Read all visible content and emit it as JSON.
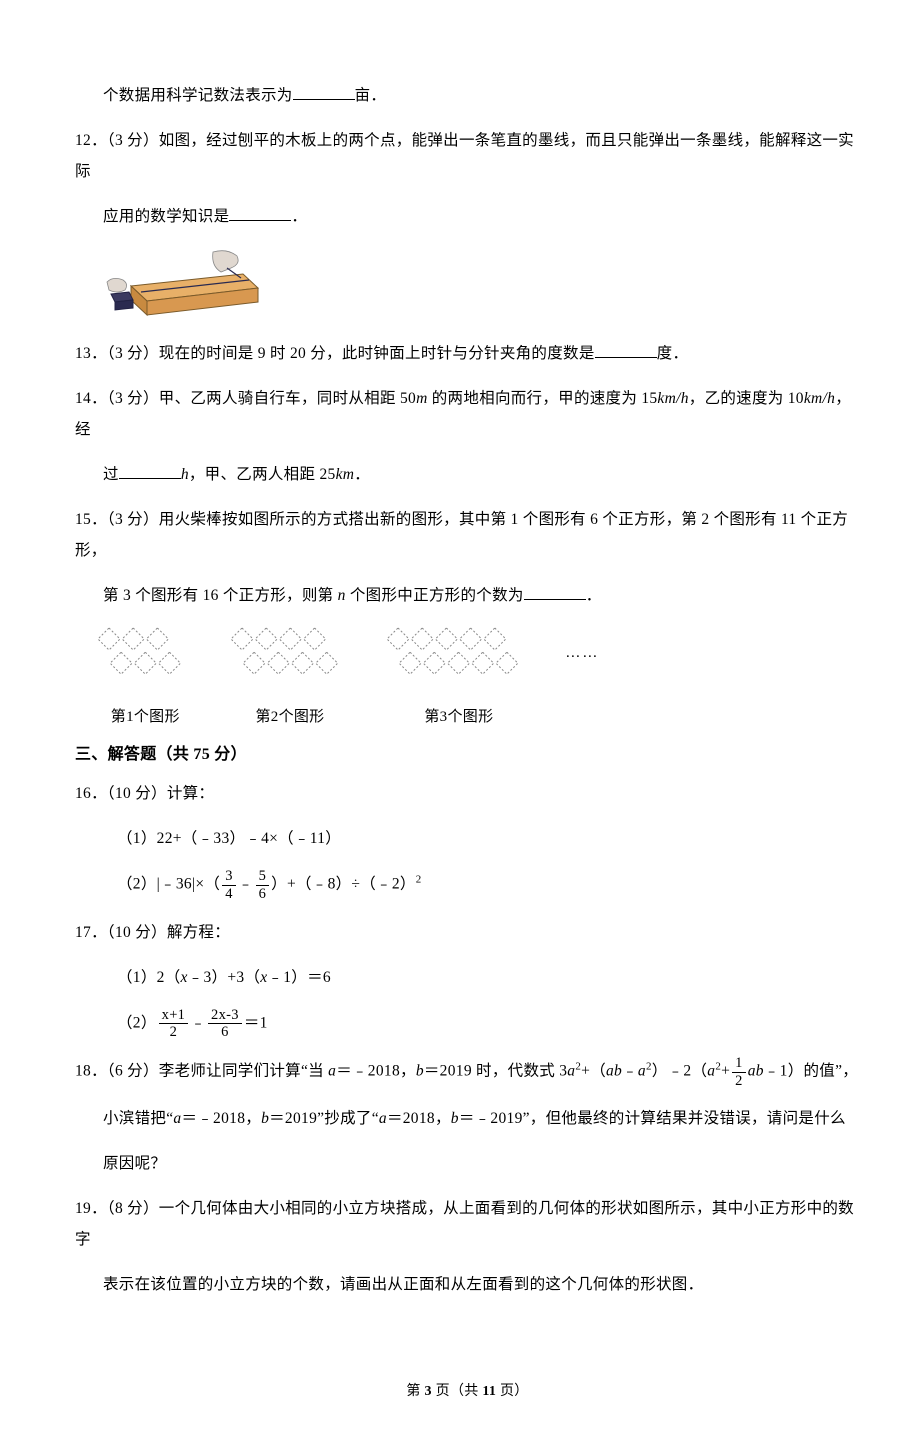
{
  "colors": {
    "text": "#000000",
    "bg": "#ffffff",
    "stroke": "#000000",
    "wood_top": "#e8b068",
    "wood_side": "#c88a40",
    "wood_front": "#d89850",
    "cloth": "#e0d8d0",
    "ink": "#3a3a60"
  },
  "blank_widths": {
    "w11": 62,
    "w12": 62,
    "w13": 62,
    "w14": 62,
    "w15": 62
  },
  "q11_cont": {
    "pre": "个数据用科学记数法表示为",
    "post": "亩．"
  },
  "q12": {
    "num": "12．（3 分）",
    "t1": "如图，经过刨平的木板上的两个点，能弹出一条笔直的墨线，而且只能弹出一条墨线，能解释这一实际",
    "t2_pre": "应用的数学知识是",
    "t2_post": "．"
  },
  "q13": {
    "num": "13．（3 分）",
    "t_pre": "现在的时间是 9 时 20 分，此时钟面上时针与分针夹角的度数是",
    "t_post": "度．"
  },
  "q14": {
    "num": "14．（3 分）",
    "t1": "甲、乙两人骑自行车，同时从相距 50",
    "m": "m",
    "t1b": " 的两地相向而行，甲的速度为 15",
    "kmh1": "km/h",
    "t1c": "，乙的速度为 10",
    "kmh2": "km/h",
    "t1d": "，经",
    "t2_pre": "过",
    "h": "h",
    "t2_mid": "，甲、乙两人相距 25",
    "km": "km",
    "t2_post": "．"
  },
  "q15": {
    "num": "15．（3 分）",
    "t1": "用火柴棒按如图所示的方式搭出新的图形，其中第 1 个图形有 6 个正方形，第 2 个图形有 11 个正方形，",
    "t2_a": "第 3 个图形有 16 个正方形，则第 ",
    "n": "n",
    "t2_b": " 个图形中正方形的个数为",
    "t2_post": "．",
    "cap1": "第1个图形",
    "cap2": "第2个图形",
    "cap3": "第3个图形",
    "dots": "……"
  },
  "section3": "三、解答题（共 75 分）",
  "q16": {
    "num": "16．（10 分）",
    "title": "计算：",
    "p1": "（1）22+（﹣33）﹣4×（﹣11）",
    "p2_a": "（2）|﹣36|×（",
    "f1n": "3",
    "f1d": "4",
    "minus": "﹣",
    "f2n": "5",
    "f2d": "6",
    "p2_b": "）+（﹣8）÷（﹣2）",
    "sq": "2"
  },
  "q17": {
    "num": "17．（10 分）",
    "title": "解方程：",
    "p1_a": "（1）2（",
    "x1": "x",
    "p1_b": "﹣3）+3（",
    "x2": "x",
    "p1_c": "﹣1）＝6",
    "p2_a": "（2）",
    "f1n": "x+1",
    "f1d": "2",
    "minus": "﹣",
    "f2n": "2x-3",
    "f2d": "6",
    "p2_b": "＝1"
  },
  "q18": {
    "num": "18．（6 分）",
    "t1_a": "李老师让同学们计算“当 ",
    "a1": "a",
    "t1_b": "＝﹣2018，",
    "b1": "b",
    "t1_c": "＝2019 时，代数式 3",
    "a2": "a",
    "t1_d": "+（",
    "ab": "ab",
    "t1_e": "﹣",
    "a3": "a",
    "t1_f": "）﹣2（",
    "a4": "a",
    "t1_g": "+",
    "half_n": "1",
    "half_d": "2",
    "ab2": "ab",
    "t1_h": "﹣1）的值”，",
    "t2_a": "小滨错把“",
    "a5": "a",
    "t2_b": "＝﹣2018，",
    "b2": "b",
    "t2_c": "＝2019”抄成了“",
    "a6": "a",
    "t2_d": "＝2018，",
    "b3": "b",
    "t2_e": "＝﹣2019”，但他最终的计算结果并没错误，请问是什么",
    "t3": "原因呢？"
  },
  "q19": {
    "num": "19．（8 分）",
    "t1": "一个几何体由大小相同的小立方块搭成，从上面看到的几何体的形状如图所示，其中小正方形中的数字",
    "t2": "表示在该位置的小立方块的个数，请画出从正面和从左面看到的这个几何体的形状图．"
  },
  "footer": {
    "pre": "第 ",
    "cur": "3",
    "mid": " 页（共 ",
    "tot": "11",
    "post": " 页）"
  },
  "plank_svg": {
    "w": 160,
    "h": 80
  },
  "pattern_svg": {
    "u": 11,
    "stroke": "#888888",
    "dash": "2 2",
    "sw": 1
  }
}
